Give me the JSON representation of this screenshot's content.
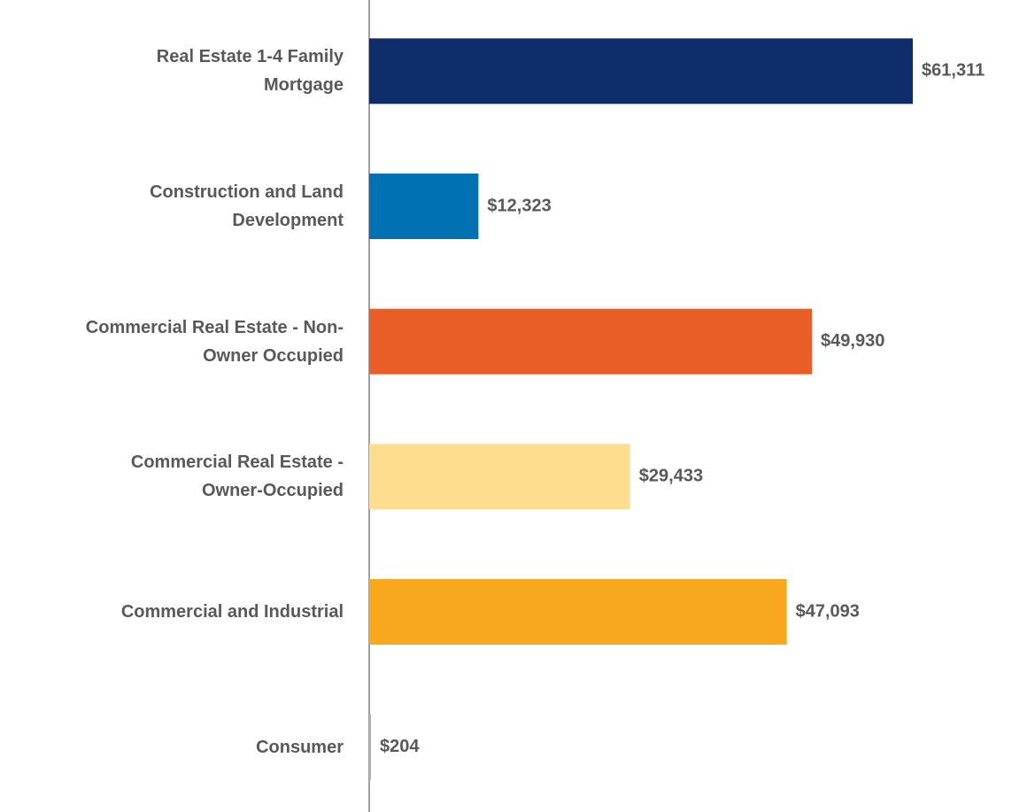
{
  "chart_data": {
    "type": "hbar",
    "categories": [
      "Real Estate 1-4 Family\nMortgage",
      "Construction and Land\nDevelopment",
      "Commercial Real Estate - Non-\nOwner Occupied",
      "Commercial Real Estate -\nOwner-Occupied",
      "Commercial and Industrial",
      "Consumer"
    ],
    "values": [
      61311,
      12323,
      49930,
      29433,
      47093,
      204
    ],
    "value_labels": [
      "$61,311",
      "$12,323",
      "$49,930",
      "$29,433",
      "$47,093",
      "$204"
    ],
    "colors": [
      "#0f2d6b",
      "#0071b3",
      "#e85e26",
      "#fedd8f",
      "#f7a81d",
      "#b0b0b0"
    ],
    "xlim": [
      0,
      70000
    ]
  }
}
